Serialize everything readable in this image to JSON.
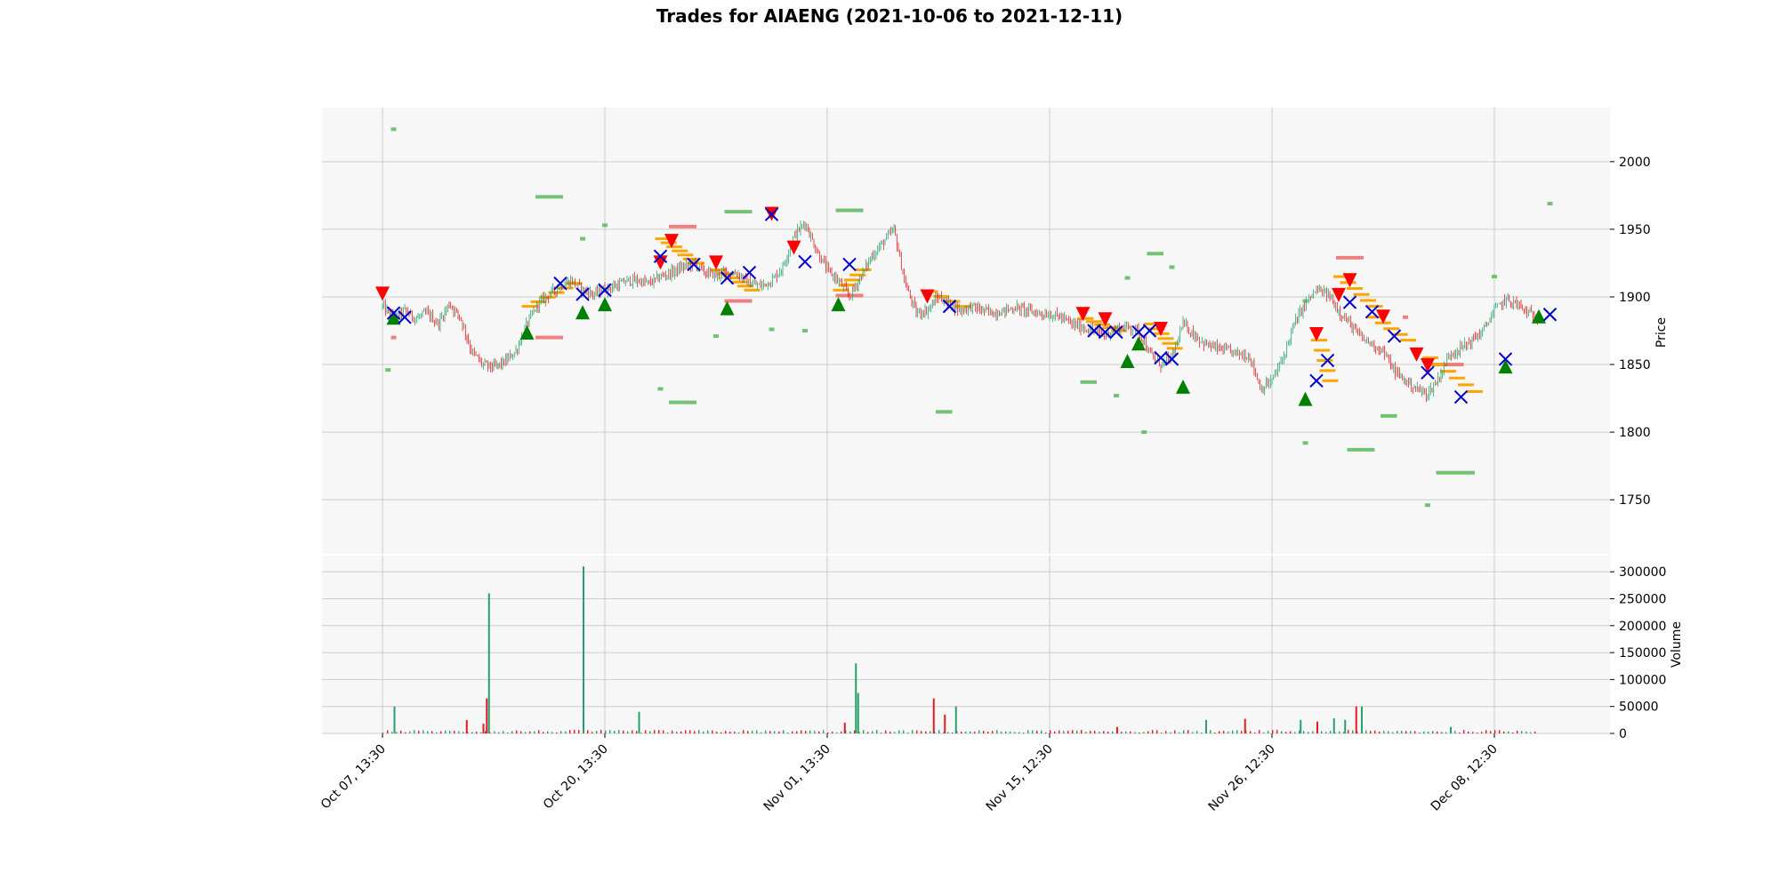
{
  "chart_data": {
    "type": "candlestick",
    "title": "Trades for AIAENG (2021-10-06 to 2021-12-11)",
    "colors": {
      "up": "#26a269",
      "down": "#e01b24",
      "buy_marker": "#008000",
      "sell_marker": "#ff0000",
      "exit_marker": "#0000cc",
      "level_buy": "#5cb85c",
      "level_sell": "#f06060",
      "order_level": "#ffa500",
      "grid": "#cccccc",
      "panel_bg": "#f7f7f7"
    },
    "x_ticks": [
      "Oct 07, 13:30",
      "Oct 20, 13:30",
      "Nov 01, 13:30",
      "Nov 15, 12:30",
      "Nov 26, 12:30",
      "Dec 08, 12:30"
    ],
    "price_panel": {
      "ylabel": "Price",
      "ylim": [
        1710,
        2040
      ],
      "y_ticks": [
        1750,
        1800,
        1850,
        1900,
        1950,
        2000
      ],
      "anchors": [
        [
          0,
          1893
        ],
        [
          1,
          1884
        ],
        [
          2,
          1890
        ],
        [
          3,
          1884
        ],
        [
          4,
          1888
        ],
        [
          5,
          1880
        ],
        [
          6,
          1895
        ],
        [
          7,
          1885
        ],
        [
          8,
          1860
        ],
        [
          9,
          1850
        ],
        [
          10,
          1848
        ],
        [
          11,
          1852
        ],
        [
          12,
          1860
        ],
        [
          13,
          1880
        ],
        [
          14,
          1895
        ],
        [
          15,
          1902
        ],
        [
          16,
          1908
        ],
        [
          17,
          1912
        ],
        [
          18,
          1905
        ],
        [
          19,
          1902
        ],
        [
          20,
          1906
        ],
        [
          21,
          1908
        ],
        [
          22,
          1912
        ],
        [
          23,
          1912
        ],
        [
          24,
          1910
        ],
        [
          25,
          1915
        ],
        [
          26,
          1918
        ],
        [
          27,
          1922
        ],
        [
          28,
          1925
        ],
        [
          29,
          1918
        ],
        [
          30,
          1916
        ],
        [
          31,
          1918
        ],
        [
          32,
          1917
        ],
        [
          33,
          1910
        ],
        [
          34,
          1908
        ],
        [
          35,
          1912
        ],
        [
          36,
          1922
        ],
        [
          37,
          1945
        ],
        [
          38,
          1955
        ],
        [
          39,
          1935
        ],
        [
          40,
          1920
        ],
        [
          41,
          1912
        ],
        [
          42,
          1900
        ],
        [
          43,
          1915
        ],
        [
          44,
          1930
        ],
        [
          45,
          1940
        ],
        [
          46,
          1950
        ],
        [
          47,
          1910
        ],
        [
          48,
          1888
        ],
        [
          49,
          1890
        ],
        [
          50,
          1900
        ],
        [
          51,
          1895
        ],
        [
          52,
          1890
        ],
        [
          53,
          1893
        ],
        [
          54,
          1890
        ],
        [
          55,
          1888
        ],
        [
          56,
          1890
        ],
        [
          57,
          1892
        ],
        [
          58,
          1890
        ],
        [
          59,
          1888
        ],
        [
          60,
          1887
        ],
        [
          61,
          1885
        ],
        [
          62,
          1880
        ],
        [
          63,
          1877
        ],
        [
          64,
          1875
        ],
        [
          65,
          1872
        ],
        [
          66,
          1876
        ],
        [
          67,
          1878
        ],
        [
          68,
          1875
        ],
        [
          69,
          1858
        ],
        [
          70,
          1850
        ],
        [
          71,
          1855
        ],
        [
          72,
          1880
        ],
        [
          73,
          1872
        ],
        [
          74,
          1865
        ],
        [
          75,
          1862
        ],
        [
          76,
          1860
        ],
        [
          77,
          1858
        ],
        [
          78,
          1856
        ],
        [
          79,
          1832
        ],
        [
          80,
          1838
        ],
        [
          81,
          1855
        ],
        [
          82,
          1880
        ],
        [
          83,
          1895
        ],
        [
          84,
          1905
        ],
        [
          85,
          1902
        ],
        [
          86,
          1890
        ],
        [
          87,
          1880
        ],
        [
          88,
          1870
        ],
        [
          89,
          1865
        ],
        [
          90,
          1860
        ],
        [
          91,
          1845
        ],
        [
          92,
          1838
        ],
        [
          93,
          1832
        ],
        [
          94,
          1828
        ],
        [
          95,
          1840
        ],
        [
          96,
          1858
        ],
        [
          97,
          1862
        ],
        [
          98,
          1868
        ],
        [
          99,
          1875
        ],
        [
          100,
          1890
        ],
        [
          101,
          1898
        ],
        [
          102,
          1895
        ],
        [
          103,
          1888
        ],
        [
          104,
          1885
        ]
      ],
      "buy_markers": [
        [
          1,
          1884
        ],
        [
          13,
          1873
        ],
        [
          18,
          1888
        ],
        [
          20,
          1894
        ],
        [
          31,
          1891
        ],
        [
          41,
          1894
        ],
        [
          67,
          1852
        ],
        [
          68,
          1865
        ],
        [
          72,
          1833
        ],
        [
          83,
          1824
        ],
        [
          101,
          1848
        ],
        [
          104,
          1885
        ]
      ],
      "sell_markers": [
        [
          0,
          1903
        ],
        [
          25,
          1926
        ],
        [
          26,
          1942
        ],
        [
          30,
          1926
        ],
        [
          35,
          1962
        ],
        [
          37,
          1937
        ],
        [
          49,
          1901
        ],
        [
          63,
          1888
        ],
        [
          65,
          1884
        ],
        [
          70,
          1877
        ],
        [
          84,
          1873
        ],
        [
          86,
          1902
        ],
        [
          87,
          1913
        ],
        [
          90,
          1886
        ],
        [
          93,
          1858
        ],
        [
          94,
          1850
        ]
      ],
      "exit_markers": [
        [
          1,
          1888
        ],
        [
          2,
          1885
        ],
        [
          16,
          1910
        ],
        [
          18,
          1902
        ],
        [
          20,
          1905
        ],
        [
          25,
          1930
        ],
        [
          28,
          1924
        ],
        [
          31,
          1914
        ],
        [
          33,
          1918
        ],
        [
          35,
          1961
        ],
        [
          38,
          1926
        ],
        [
          42,
          1924
        ],
        [
          51,
          1893
        ],
        [
          64,
          1875
        ],
        [
          65,
          1874
        ],
        [
          66,
          1874
        ],
        [
          68,
          1874
        ],
        [
          69,
          1875
        ],
        [
          70,
          1855
        ],
        [
          71,
          1854
        ],
        [
          84,
          1838
        ],
        [
          85,
          1853
        ],
        [
          87,
          1896
        ],
        [
          89,
          1889
        ],
        [
          91,
          1871
        ],
        [
          94,
          1844
        ],
        [
          97,
          1826
        ],
        [
          101,
          1854
        ],
        [
          105,
          1887
        ]
      ],
      "level_buy": [
        [
          1,
          1,
          2024
        ],
        [
          0.5,
          0.5,
          1846
        ],
        [
          14,
          16,
          1974
        ],
        [
          18,
          18,
          1943
        ],
        [
          20,
          20,
          1953
        ],
        [
          25,
          25,
          1832
        ],
        [
          26,
          28,
          1822
        ],
        [
          30,
          30,
          1871
        ],
        [
          31,
          33,
          1963
        ],
        [
          35,
          35,
          1876
        ],
        [
          38,
          38,
          1875
        ],
        [
          41,
          43,
          1964
        ],
        [
          50,
          51,
          1815
        ],
        [
          63,
          64,
          1837
        ],
        [
          66,
          66,
          1827
        ],
        [
          67,
          67,
          1914
        ],
        [
          69,
          70,
          1932
        ],
        [
          68.5,
          68.5,
          1800
        ],
        [
          71,
          71,
          1922
        ],
        [
          83,
          83,
          1897
        ],
        [
          83,
          83,
          1792
        ],
        [
          87,
          89,
          1787
        ],
        [
          90,
          91,
          1812
        ],
        [
          94,
          94,
          1746
        ],
        [
          95,
          98,
          1770
        ],
        [
          100,
          100,
          1915
        ],
        [
          105,
          105,
          1969
        ]
      ],
      "level_sell": [
        [
          1,
          1,
          1870
        ],
        [
          14,
          16,
          1870
        ],
        [
          26,
          28,
          1952
        ],
        [
          31,
          33,
          1897
        ],
        [
          41,
          43,
          1901
        ],
        [
          86,
          88,
          1929
        ],
        [
          94,
          97,
          1850
        ],
        [
          92,
          92,
          1885
        ]
      ],
      "order_levels": [
        [
          13,
          17,
          1893,
          1910,
          6
        ],
        [
          25,
          28,
          1943,
          1925,
          7
        ],
        [
          30,
          33,
          1920,
          1905,
          6
        ],
        [
          41,
          43,
          1905,
          1920,
          5
        ],
        [
          49,
          52,
          1904,
          1893,
          4
        ],
        [
          63,
          66,
          1884,
          1875,
          5
        ],
        [
          69,
          71,
          1880,
          1862,
          6
        ],
        [
          84,
          85,
          1868,
          1838,
          5
        ],
        [
          86,
          89,
          1915,
          1893,
          6
        ],
        [
          89,
          92,
          1885,
          1868,
          5
        ],
        [
          94,
          98,
          1855,
          1830,
          6
        ]
      ]
    },
    "volume_panel": {
      "ylabel": "Volume",
      "ylim": [
        0,
        330000
      ],
      "y_ticks": [
        0,
        50000,
        100000,
        150000,
        200000,
        250000,
        300000
      ],
      "spikes": [
        [
          1,
          50000,
          "up"
        ],
        [
          7.5,
          25000,
          "down"
        ],
        [
          9,
          18000,
          "down"
        ],
        [
          9.5,
          260000,
          "up"
        ],
        [
          9.3,
          65000,
          "down"
        ],
        [
          18,
          310000,
          "up"
        ],
        [
          23,
          40000,
          "up"
        ],
        [
          42.5,
          130000,
          "up"
        ],
        [
          42.7,
          75000,
          "up"
        ],
        [
          41.5,
          20000,
          "down"
        ],
        [
          49.5,
          65000,
          "down"
        ],
        [
          50.5,
          35000,
          "down"
        ],
        [
          51.5,
          50000,
          "up"
        ],
        [
          66,
          12000,
          "down"
        ],
        [
          74,
          25000,
          "up"
        ],
        [
          77.5,
          27000,
          "down"
        ],
        [
          82.5,
          25000,
          "up"
        ],
        [
          84,
          22000,
          "down"
        ],
        [
          85.5,
          28000,
          "up"
        ],
        [
          86.5,
          25000,
          "up"
        ],
        [
          87.5,
          50000,
          "down"
        ],
        [
          88,
          50000,
          "up"
        ],
        [
          96,
          12000,
          "up"
        ]
      ]
    }
  }
}
